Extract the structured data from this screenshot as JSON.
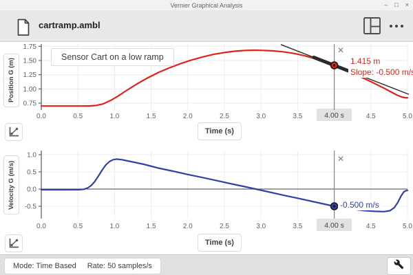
{
  "window": {
    "title": "Vernier Graphical Analysis",
    "minimize": "–",
    "restore": "□",
    "close": "×"
  },
  "toolbar": {
    "filename": "cartramp.ambl"
  },
  "icons": {
    "examine_close": "×"
  },
  "status": {
    "mode": "Mode: Time Based",
    "rate": "Rate: 50 samples/s"
  },
  "colors": {
    "position_red": "#e02318",
    "velocity_blue": "#2f41a8",
    "tangent": "#2a2a2a",
    "grid": "#ececec",
    "axis": "#606468",
    "examine_line": "#8a8a8a",
    "highlight": "#e2e2e2"
  },
  "chart_data": [
    {
      "type": "line",
      "series_name": "Position",
      "color_key": "position_red",
      "annotation": "Sensor Cart on a low ramp",
      "xlabel": "Time (s)",
      "ylabel": "Position G (m)",
      "xlim": [
        0,
        5
      ],
      "ylim": [
        0.63,
        1.79
      ],
      "xticks": [
        {
          "v": 0,
          "label": "0.0"
        },
        {
          "v": 0.5,
          "label": "0.5"
        },
        {
          "v": 1,
          "label": "1.0"
        },
        {
          "v": 1.5,
          "label": "1.5"
        },
        {
          "v": 2,
          "label": "2.0"
        },
        {
          "v": 2.5,
          "label": "2.5"
        },
        {
          "v": 3,
          "label": "3.0"
        },
        {
          "v": 3.5,
          "label": "3.5"
        },
        {
          "v": 4,
          "label": "4.0",
          "examine": true
        },
        {
          "v": 4.5,
          "label": "4.5"
        },
        {
          "v": 5,
          "label": "5.0"
        }
      ],
      "yticks": [
        {
          "v": 0.75,
          "label": "0.75"
        },
        {
          "v": 1.0,
          "label": "1.00"
        },
        {
          "v": 1.25,
          "label": "1.25"
        },
        {
          "v": 1.5,
          "label": "1.50"
        },
        {
          "v": 1.75,
          "label": "1.75"
        }
      ],
      "examine": {
        "t": 4.0,
        "value": 1.415,
        "time_label": "4.00 s",
        "value_label": "1.415 m",
        "slope_label": "Slope: -0.500 m/s"
      },
      "tangent": {
        "slope": -0.5,
        "t0": 4.0,
        "v0": 1.415,
        "t_start": 3.27,
        "t_end": 5.02,
        "bold_start": 3.72,
        "bold_end": 4.19
      },
      "points": [
        [
          0,
          0.7
        ],
        [
          0.3,
          0.7
        ],
        [
          0.55,
          0.7
        ],
        [
          0.65,
          0.701
        ],
        [
          0.75,
          0.71
        ],
        [
          0.85,
          0.74
        ],
        [
          0.95,
          0.8
        ],
        [
          1.05,
          0.875
        ],
        [
          1.15,
          0.962
        ],
        [
          1.3,
          1.083
        ],
        [
          1.45,
          1.193
        ],
        [
          1.6,
          1.29
        ],
        [
          1.75,
          1.372
        ],
        [
          1.9,
          1.445
        ],
        [
          2.05,
          1.508
        ],
        [
          2.2,
          1.562
        ],
        [
          2.35,
          1.607
        ],
        [
          2.5,
          1.64
        ],
        [
          2.65,
          1.664
        ],
        [
          2.78,
          1.677
        ],
        [
          2.9,
          1.681
        ],
        [
          3.02,
          1.678
        ],
        [
          3.15,
          1.67
        ],
        [
          3.3,
          1.653
        ],
        [
          3.45,
          1.624
        ],
        [
          3.6,
          1.582
        ],
        [
          3.75,
          1.528
        ],
        [
          3.9,
          1.463
        ],
        [
          4.0,
          1.415
        ],
        [
          4.12,
          1.352
        ],
        [
          4.25,
          1.279
        ],
        [
          4.4,
          1.19
        ],
        [
          4.55,
          1.096
        ],
        [
          4.68,
          1.013
        ],
        [
          4.78,
          0.944
        ],
        [
          4.86,
          0.89
        ],
        [
          4.92,
          0.859
        ],
        [
          4.96,
          0.848
        ],
        [
          5.0,
          0.845
        ]
      ]
    },
    {
      "type": "line",
      "series_name": "Velocity",
      "color_key": "velocity_blue",
      "xlabel": "Time (s)",
      "ylabel": "Velocity G (m/s)",
      "xlim": [
        0,
        5
      ],
      "ylim": [
        -0.86,
        1.12
      ],
      "zero_line": 0,
      "xticks": [
        {
          "v": 0,
          "label": "0.0"
        },
        {
          "v": 0.5,
          "label": "0.5"
        },
        {
          "v": 1,
          "label": "1.0"
        },
        {
          "v": 1.5,
          "label": "1.5"
        },
        {
          "v": 2,
          "label": "2.0"
        },
        {
          "v": 2.5,
          "label": "2.5"
        },
        {
          "v": 3,
          "label": "3.0"
        },
        {
          "v": 3.5,
          "label": "3.5"
        },
        {
          "v": 4,
          "label": "4.0",
          "examine": true
        },
        {
          "v": 4.5,
          "label": "4.5"
        },
        {
          "v": 5,
          "label": "5.0"
        }
      ],
      "yticks": [
        {
          "v": -0.5,
          "label": "-0.5"
        },
        {
          "v": 0,
          "label": "0.0"
        },
        {
          "v": 0.5,
          "label": "0.5"
        },
        {
          "v": 1,
          "label": "1.0"
        }
      ],
      "examine": {
        "t": 4.0,
        "value": -0.5,
        "time_label": "4.00 s",
        "value_label": "-0.500 m/s"
      },
      "points": [
        [
          0,
          -0.02
        ],
        [
          0.3,
          -0.02
        ],
        [
          0.52,
          -0.018
        ],
        [
          0.58,
          -0.005
        ],
        [
          0.63,
          0.03
        ],
        [
          0.68,
          0.1
        ],
        [
          0.73,
          0.22
        ],
        [
          0.78,
          0.38
        ],
        [
          0.83,
          0.55
        ],
        [
          0.88,
          0.7
        ],
        [
          0.93,
          0.8
        ],
        [
          0.98,
          0.855
        ],
        [
          1.03,
          0.872
        ],
        [
          1.1,
          0.855
        ],
        [
          1.2,
          0.81
        ],
        [
          1.4,
          0.72
        ],
        [
          1.6,
          0.61
        ],
        [
          1.8,
          0.52
        ],
        [
          2.0,
          0.425
        ],
        [
          2.2,
          0.335
        ],
        [
          2.4,
          0.245
        ],
        [
          2.6,
          0.15
        ],
        [
          2.8,
          0.06
        ],
        [
          2.95,
          -0.01
        ],
        [
          3.1,
          -0.08
        ],
        [
          3.3,
          -0.175
        ],
        [
          3.5,
          -0.265
        ],
        [
          3.7,
          -0.36
        ],
        [
          3.85,
          -0.43
        ],
        [
          4.0,
          -0.5
        ],
        [
          4.12,
          -0.545
        ],
        [
          4.25,
          -0.585
        ],
        [
          4.4,
          -0.625
        ],
        [
          4.55,
          -0.648
        ],
        [
          4.68,
          -0.655
        ],
        [
          4.76,
          -0.63
        ],
        [
          4.82,
          -0.54
        ],
        [
          4.87,
          -0.38
        ],
        [
          4.91,
          -0.21
        ],
        [
          4.95,
          -0.08
        ],
        [
          4.98,
          -0.045
        ],
        [
          5.0,
          -0.04
        ]
      ]
    }
  ]
}
